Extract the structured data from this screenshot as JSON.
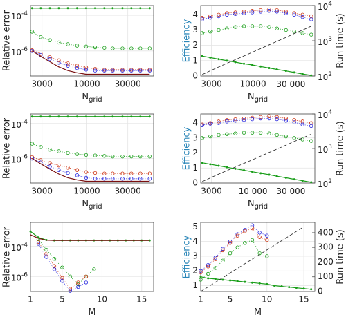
{
  "chart_data": [
    {
      "type": "line",
      "ylabel": "Relative error",
      "xlabel": "N",
      "xlabel_sub": "grid",
      "xscale": "log",
      "yscale": "log",
      "grid": true,
      "xlim": [
        2200,
        60000
      ],
      "xticks": [
        3000,
        10000,
        30000
      ],
      "ylim": [
        4e-08,
        0.00035
      ],
      "yticks": [
        {
          "value": 0.0001,
          "label": "10",
          "exponent": "-4"
        },
        {
          "value": 1e-06,
          "label": "10",
          "exponent": "-6"
        }
      ],
      "x": [
        2300,
        2900,
        3700,
        4700,
        6000,
        7700,
        9800,
        12500,
        16000,
        20000,
        26000,
        33000,
        42000,
        54000
      ],
      "series": [
        {
          "color": "#1a9e1a",
          "style": "line-dots",
          "values": [
            0.00025,
            0.00025,
            0.00025,
            0.00025,
            0.00025,
            0.00025,
            0.00025,
            0.00025,
            0.00025,
            0.00025,
            0.00025,
            0.00025,
            0.00025,
            0.00025
          ]
        },
        {
          "color": "#1a9e1a",
          "style": "circles",
          "values": [
            1.2e-05,
            6e-06,
            4e-06,
            3e-06,
            2.4e-06,
            2e-06,
            1.8e-06,
            1.6e-06,
            1.5e-06,
            1.4e-06,
            1.4e-06,
            1.4e-06,
            1.4e-06,
            1.4e-06
          ]
        },
        {
          "color": "#cc3311",
          "style": "circles",
          "values": [
            1.1e-06,
            7e-07,
            4.5e-07,
            3e-07,
            2e-07,
            1.5e-07,
            1.2e-07,
            1e-07,
            9e-08,
            9e-08,
            9e-08,
            9e-08,
            9e-08,
            9e-08
          ]
        },
        {
          "color": "#2222dd",
          "style": "circles",
          "values": [
            1e-06,
            6e-07,
            3.5e-07,
            2.2e-07,
            1.5e-07,
            1.1e-07,
            9e-08,
            8e-08,
            8e-08,
            8e-08,
            8e-08,
            8e-08,
            8e-08,
            8e-08
          ]
        },
        {
          "color": "#7a1010",
          "style": "line",
          "values": [
            1e-06,
            5e-07,
            2.5e-07,
            1.3e-07,
            8e-08,
            6e-08,
            5e-08,
            5e-08,
            5e-08,
            5e-08,
            5e-08,
            5e-08,
            5e-08,
            5e-08
          ]
        }
      ]
    },
    {
      "type": "line",
      "ylabel": "Efficiency",
      "ylabel_color": "#2a86b8",
      "y2label": "Run time (s)",
      "xlabel": "N",
      "xlabel_sub": "grid",
      "xscale": "log",
      "y2scale": "log",
      "grid": true,
      "xlim": [
        2200,
        60000
      ],
      "xticks": [
        3000,
        10000,
        {
          "value": 30000,
          "label": "30 000"
        }
      ],
      "ylim": [
        0,
        4.6
      ],
      "yticks": [
        0,
        1,
        2,
        3,
        4
      ],
      "y2lim": [
        100,
        10000
      ],
      "y2ticks": [
        {
          "value": 100,
          "label": "10",
          "exponent": "2"
        },
        {
          "value": 1000,
          "label": "10",
          "exponent": "3"
        },
        {
          "value": 10000,
          "label": "10",
          "exponent": "4"
        }
      ],
      "x": [
        2300,
        2900,
        3700,
        4700,
        6000,
        7700,
        9800,
        12500,
        16000,
        20000,
        26000,
        33000,
        42000,
        54000
      ],
      "series": [
        {
          "color": "#cc3311",
          "style": "circles",
          "values": [
            3.8,
            3.9,
            4.0,
            4.1,
            4.15,
            4.2,
            4.25,
            4.3,
            4.35,
            4.3,
            4.2,
            4.1,
            4.0,
            3.9
          ]
        },
        {
          "color": "#2222dd",
          "style": "circles",
          "values": [
            3.7,
            3.8,
            3.9,
            4.0,
            4.05,
            4.1,
            4.15,
            4.2,
            4.25,
            4.2,
            4.1,
            4.0,
            3.85,
            3.7
          ]
        },
        {
          "color": "#1a9e1a",
          "style": "circles",
          "values": [
            2.8,
            2.9,
            3.0,
            3.1,
            3.2,
            3.25,
            3.25,
            3.25,
            3.2,
            3.1,
            3.0,
            2.9,
            2.8,
            2.7
          ]
        },
        {
          "color": "#1a9e1a",
          "style": "line-dots",
          "values": [
            1.3,
            1.2,
            1.1,
            1.0,
            0.9,
            0.8,
            0.72,
            0.62,
            0.52,
            0.43,
            0.33,
            0.23,
            0.13,
            0.04
          ]
        },
        {
          "color": "#333333",
          "style": "dashed",
          "axis": "y2",
          "values": [
            110,
            140,
            180,
            230,
            290,
            370,
            470,
            600,
            770,
            960,
            1250,
            1600,
            2000,
            2600
          ]
        }
      ]
    },
    {
      "type": "line",
      "ylabel": "Relative error",
      "xlabel": "N",
      "xlabel_sub": "grid",
      "xscale": "log",
      "yscale": "log",
      "grid": true,
      "xlim": [
        2200,
        60000
      ],
      "xticks": [
        3000,
        10000,
        30000
      ],
      "ylim": [
        4e-08,
        0.00035
      ],
      "yticks": [
        {
          "value": 0.0001,
          "label": "10",
          "exponent": "-4"
        },
        {
          "value": 1e-06,
          "label": "10",
          "exponent": "-6"
        }
      ],
      "x": [
        2300,
        2900,
        3700,
        4700,
        6000,
        7700,
        9800,
        12500,
        16000,
        20000,
        26000,
        33000,
        42000,
        54000
      ],
      "series": [
        {
          "color": "#1a9e1a",
          "style": "line-dots",
          "values": [
            0.00025,
            0.00025,
            0.00025,
            0.00025,
            0.00025,
            0.00025,
            0.00025,
            0.00025,
            0.00025,
            0.00025,
            0.00025,
            0.00025,
            0.00025,
            0.00025
          ]
        },
        {
          "color": "#1a9e1a",
          "style": "circles",
          "values": [
            7e-06,
            4.5e-06,
            3.2e-06,
            2.6e-06,
            2.1e-06,
            1.8e-06,
            1.6e-06,
            1.5e-06,
            1.4e-06,
            1.3e-06,
            1.3e-06,
            1.3e-06,
            1.3e-06,
            1.3e-06
          ]
        },
        {
          "color": "#cc3311",
          "style": "circles",
          "values": [
            1.2e-06,
            8e-07,
            5.5e-07,
            4e-07,
            3e-07,
            2.2e-07,
            1.7e-07,
            1.5e-07,
            1.4e-07,
            1.4e-07,
            1.4e-07,
            1.4e-07,
            1.4e-07,
            1.4e-07
          ]
        },
        {
          "color": "#2222dd",
          "style": "circles",
          "values": [
            1e-06,
            6e-07,
            3.5e-07,
            2.2e-07,
            1.5e-07,
            1.1e-07,
            8e-08,
            7e-08,
            7e-08,
            7e-08,
            7e-08,
            7e-08,
            7e-08,
            7e-08
          ]
        },
        {
          "color": "#7a1010",
          "style": "line",
          "values": [
            1e-06,
            5e-07,
            2.5e-07,
            1.3e-07,
            8e-08,
            6e-08,
            5e-08,
            5e-08,
            5e-08,
            5e-08,
            5e-08,
            5e-08,
            5e-08,
            5e-08
          ]
        }
      ]
    },
    {
      "type": "line",
      "ylabel": "Efficiency",
      "ylabel_color": "#2a86b8",
      "y2label": "Run time (s)",
      "xlabel": "N",
      "xlabel_sub": "grid",
      "xscale": "log",
      "y2scale": "log",
      "grid": true,
      "xlim": [
        2200,
        60000
      ],
      "xticks": [
        3000,
        {
          "value": 10000,
          "label": "10 000"
        },
        {
          "value": 30000,
          "label": "30 000"
        }
      ],
      "ylim": [
        0,
        4.6
      ],
      "yticks": [
        0,
        1,
        2,
        3,
        4
      ],
      "y2lim": [
        100,
        10000
      ],
      "y2ticks": [
        {
          "value": 100,
          "label": "10",
          "exponent": "2"
        },
        {
          "value": 1000,
          "label": "10",
          "exponent": "3"
        },
        {
          "value": 10000,
          "label": "10",
          "exponent": "4"
        }
      ],
      "x": [
        2300,
        2900,
        3700,
        4700,
        6000,
        7700,
        9800,
        12500,
        16000,
        20000,
        26000,
        33000,
        42000,
        54000
      ],
      "series": [
        {
          "color": "#cc3311",
          "style": "circles",
          "values": [
            3.9,
            4.0,
            4.1,
            4.2,
            4.25,
            4.3,
            4.35,
            4.4,
            4.45,
            4.4,
            4.3,
            4.2,
            4.1,
            4.0
          ]
        },
        {
          "color": "#2222dd",
          "style": "circles",
          "values": [
            3.85,
            3.95,
            4.0,
            4.1,
            4.15,
            4.2,
            4.25,
            4.3,
            4.3,
            4.25,
            4.15,
            4.05,
            3.9,
            3.8
          ]
        },
        {
          "color": "#1a9e1a",
          "style": "circles",
          "values": [
            3.0,
            3.1,
            3.2,
            3.25,
            3.3,
            3.35,
            3.35,
            3.35,
            3.3,
            3.2,
            3.1,
            3.0,
            2.9,
            2.8
          ]
        },
        {
          "color": "#1a9e1a",
          "style": "line-dots",
          "values": [
            1.35,
            1.25,
            1.15,
            1.05,
            0.95,
            0.85,
            0.75,
            0.65,
            0.55,
            0.45,
            0.35,
            0.25,
            0.15,
            0.05
          ]
        },
        {
          "color": "#333333",
          "style": "dashed",
          "axis": "y2",
          "values": [
            110,
            140,
            180,
            230,
            290,
            370,
            470,
            600,
            770,
            960,
            1250,
            1600,
            2000,
            2600
          ]
        }
      ]
    },
    {
      "type": "line",
      "ylabel": "Relative error",
      "xlabel": "M",
      "yscale": "log",
      "grid": true,
      "xlim": [
        1,
        16.5
      ],
      "xticks": [
        1,
        5,
        10,
        15
      ],
      "ylim": [
        1e-07,
        0.004
      ],
      "yticks": [
        {
          "value": 0.0001,
          "label": "10",
          "exponent": "-4"
        },
        {
          "value": 1e-06,
          "label": "10",
          "exponent": "-6"
        }
      ],
      "x": [
        1,
        2,
        3,
        4,
        5,
        6,
        7,
        8,
        9,
        10,
        11,
        12,
        13,
        14,
        15,
        16
      ],
      "series": [
        {
          "color": "#1a9e1a",
          "style": "line-dots",
          "values": [
            0.001,
            0.0004,
            0.00027,
            0.00025,
            0.00025,
            0.00025,
            0.00025,
            0.00025,
            0.00025,
            0.00025,
            0.00025,
            0.00025,
            0.00025,
            0.00025,
            0.00025,
            0.00025
          ]
        },
        {
          "color": "#7a1010",
          "style": "line",
          "values": [
            0.0006,
            0.00035,
            0.00026,
            0.00025,
            0.00025,
            0.00025,
            0.00025,
            0.00025,
            0.00025,
            0.00025,
            0.00025,
            0.00025,
            0.00025,
            0.00025,
            0.00025,
            0.00025
          ]
        },
        {
          "color": "#1a9e1a",
          "style": "circles",
          "values": [
            null,
            0.0003,
            6e-05,
            1.5e-05,
            4e-06,
            1e-06,
            3e-07,
            1e-06,
            3e-06,
            null,
            null,
            null,
            null,
            null,
            null,
            null
          ]
        },
        {
          "color": "#cc3311",
          "style": "circles",
          "values": [
            null,
            0.0002,
            3e-05,
            5e-06,
            8e-07,
            1.5e-07,
            4e-07,
            1e-06,
            null,
            null,
            null,
            null,
            null,
            null,
            null,
            null
          ]
        },
        {
          "color": "#2222dd",
          "style": "circles",
          "values": [
            null,
            0.00015,
            2e-05,
            3e-06,
            5e-07,
            1.1e-07,
            2e-07,
            4e-07,
            null,
            null,
            null,
            null,
            null,
            null,
            null,
            null
          ]
        }
      ]
    },
    {
      "type": "line",
      "ylabel": "Efficiency",
      "ylabel_color": "#2a86b8",
      "y2label": "Run time (s)",
      "xlabel": "M",
      "grid": true,
      "xlim": [
        1,
        16.5
      ],
      "xticks": [
        1,
        5,
        10,
        15
      ],
      "ylim": [
        0.6,
        5.3
      ],
      "yticks": [
        1,
        2,
        3,
        4,
        5
      ],
      "y2lim": [
        0,
        470
      ],
      "y2ticks": [
        0,
        100,
        200,
        300,
        400
      ],
      "x": [
        1,
        2,
        3,
        4,
        5,
        6,
        7,
        8,
        9,
        10,
        11,
        12,
        13,
        14,
        15,
        16
      ],
      "series": [
        {
          "color": "#2222dd",
          "style": "circles",
          "values": [
            2.0,
            2.4,
            2.9,
            3.5,
            4.0,
            4.5,
            4.8,
            5.1,
            4.6,
            4.4,
            null,
            null,
            null,
            null,
            null,
            null
          ]
        },
        {
          "color": "#cc3311",
          "style": "circles",
          "values": [
            1.9,
            2.3,
            2.8,
            3.4,
            3.9,
            4.4,
            4.7,
            4.9,
            4.3,
            4.1,
            null,
            null,
            null,
            null,
            null,
            null
          ]
        },
        {
          "color": "#1a9e1a",
          "style": "circles",
          "values": [
            1.4,
            1.8,
            2.2,
            2.7,
            3.2,
            3.6,
            3.9,
            4.1,
            3.2,
            3.0,
            null,
            null,
            null,
            null,
            null,
            null
          ]
        },
        {
          "color": "#1a9e1a",
          "style": "line-dots",
          "values": [
            1.6,
            1.5,
            1.45,
            1.4,
            1.35,
            1.3,
            1.25,
            1.2,
            1.15,
            1.1,
            1.0,
            0.95,
            0.9,
            0.85,
            0.8,
            0.75
          ]
        },
        {
          "color": "#333333",
          "style": "dashed",
          "axis": "y2",
          "values": [
            0,
            31,
            63,
            94,
            126,
            157,
            189,
            220,
            251,
            283,
            314,
            346,
            377,
            409,
            440,
            null
          ]
        }
      ]
    }
  ]
}
